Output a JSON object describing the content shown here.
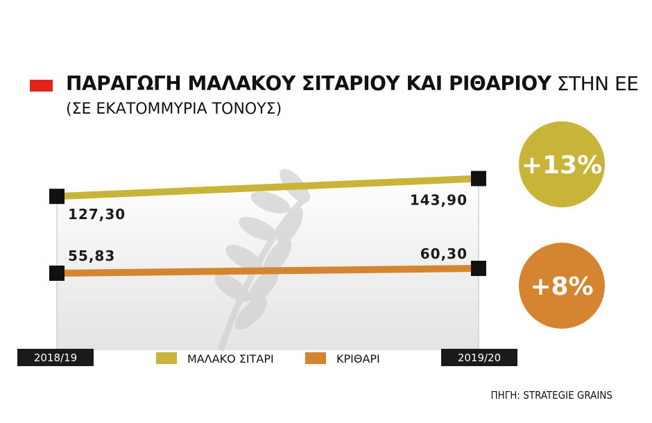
{
  "title": {
    "bold": "ΠΑΡΑΓΩΓΗ ΜΑΛΑΚΟΥ ΣΙΤΑΡΙΟΥ ΚΑΙ ΡΙΘΑΡΙΟΥ",
    "light": " ΣΤΗΝ ΕΕ",
    "subtitle": "(ΣΕ ΕΚΑΤΟΜΜΥΡΙΑ ΤΟΝΟΥΣ)"
  },
  "source": "ΠΗΓΗ: STRATEGIE GRAINS",
  "colors": {
    "title_marker": "#e2231a",
    "wheat": "#c9b43a",
    "barley": "#d5852f",
    "marker": "#111111",
    "axis_label_bg": "#1a1a1a"
  },
  "icons": {
    "background": "wheat-stalk-watermark-icon"
  },
  "chart_data": {
    "type": "line",
    "x": [
      "2018/19",
      "2019/20"
    ],
    "series": [
      {
        "name": "ΜΑΛΑΚΟ ΣΙΤΑΡΙ",
        "values": [
          127.3,
          143.9
        ],
        "labels": [
          "127,30",
          "143,90"
        ],
        "change": "+13%",
        "color": "#c9b43a"
      },
      {
        "name": "ΚΡΙΘΑΡΙ",
        "values": [
          55.83,
          60.3
        ],
        "labels": [
          "55,83",
          "60,30"
        ],
        "change": "+8%",
        "color": "#d5852f"
      }
    ],
    "legend": "bottom-center",
    "grid": false
  }
}
